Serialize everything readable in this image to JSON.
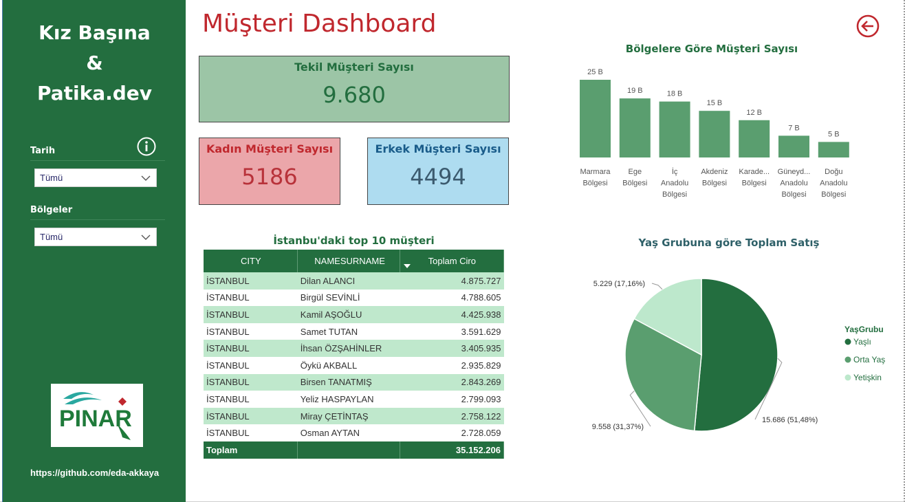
{
  "sidebar": {
    "brand_lines": [
      "Kız Başına",
      "&",
      "Patika.dev"
    ],
    "filters": [
      {
        "label": "Tarih",
        "value": "Tümü"
      },
      {
        "label": "Bölgeler",
        "value": "Tümü"
      }
    ],
    "logo_text": "PINAR",
    "github": "https://github.com/eda-akkaya"
  },
  "header": {
    "title": "Müşteri Dashboard"
  },
  "kpis": {
    "total": {
      "label": "Tekil Müşteri Sayısı",
      "value": "9.680"
    },
    "female": {
      "label": "Kadın Müşteri Sayısı",
      "value": "5186"
    },
    "male": {
      "label": "Erkek Müşteri Sayısı",
      "value": "4494"
    }
  },
  "table": {
    "title": "İstanbu'daki top 10 müşteri",
    "columns": [
      "CITY",
      "NAMESURNAME",
      "Toplam Ciro"
    ],
    "rows": [
      [
        "İSTANBUL",
        "Dilan ALANCI",
        "4.875.727"
      ],
      [
        "İSTANBUL",
        "Birgül SEVİNLİ",
        "4.788.605"
      ],
      [
        "İSTANBUL",
        "Kamil AŞOĞLU",
        "4.425.938"
      ],
      [
        "İSTANBUL",
        "Samet TUTAN",
        "3.591.629"
      ],
      [
        "İSTANBUL",
        "İhsan ÖZŞAHİNLER",
        "3.405.935"
      ],
      [
        "İSTANBUL",
        "Öykü AKBALL",
        "2.935.829"
      ],
      [
        "İSTANBUL",
        "Birsen TANATMIŞ",
        "2.843.269"
      ],
      [
        "İSTANBUL",
        "Yeliz HASPAYLAN",
        "2.799.093"
      ],
      [
        "İSTANBUL",
        "Miray ÇETİNTAŞ",
        "2.758.122"
      ],
      [
        "İSTANBUL",
        "Osman AYTAN",
        "2.728.059"
      ]
    ],
    "total_label": "Toplam",
    "total_value": "35.152.206"
  },
  "colors": {
    "brand_green": "#236e3f",
    "bar_green": "#5a9e6f",
    "title_red": "#c0282e",
    "female_bg": "#eba6aa",
    "male_bg": "#aedcf0",
    "total_bg": "#9cc5a6"
  },
  "icons": {
    "info": "info-icon",
    "back": "back-arrow-icon",
    "dropdown": "chevron-down-icon"
  },
  "chart_data": [
    {
      "type": "bar",
      "title": "Bölgelere Göre Müşteri Sayısı",
      "categories": [
        [
          "Marmara",
          "Bölgesi"
        ],
        [
          "Ege",
          "Bölgesi"
        ],
        [
          "İç",
          "Anadolu",
          "Bölgesi"
        ],
        [
          "Akdeniz",
          "Bölgesi"
        ],
        [
          "Karade...",
          "Bölgesi"
        ],
        [
          "Güneyd...",
          "Anadolu",
          "Bölgesi"
        ],
        [
          "Doğu",
          "Anadolu",
          "Bölgesi"
        ]
      ],
      "values": [
        25,
        19,
        18,
        15,
        12,
        7,
        5
      ],
      "data_labels": [
        "25 B",
        "19 B",
        "18 B",
        "15 B",
        "12 B",
        "7 B",
        "5 B"
      ],
      "ylim": [
        0,
        25
      ],
      "grid": false
    },
    {
      "type": "pie",
      "title": "Yaş Grubuna göre Toplam Satış",
      "legend_title": "YaşGrubu",
      "legend_position": "right",
      "slices": [
        {
          "name": "Yaşlı",
          "value": 15686,
          "label": "15.686 (51,48%)",
          "color": "#236e3f"
        },
        {
          "name": "Orta Yaş",
          "value": 9558,
          "label": "9.558 (31,37%)",
          "color": "#5a9e6f"
        },
        {
          "name": "Yetişkin",
          "value": 5229,
          "label": "5.229 (17,16%)",
          "color": "#bde8cc"
        }
      ]
    }
  ]
}
